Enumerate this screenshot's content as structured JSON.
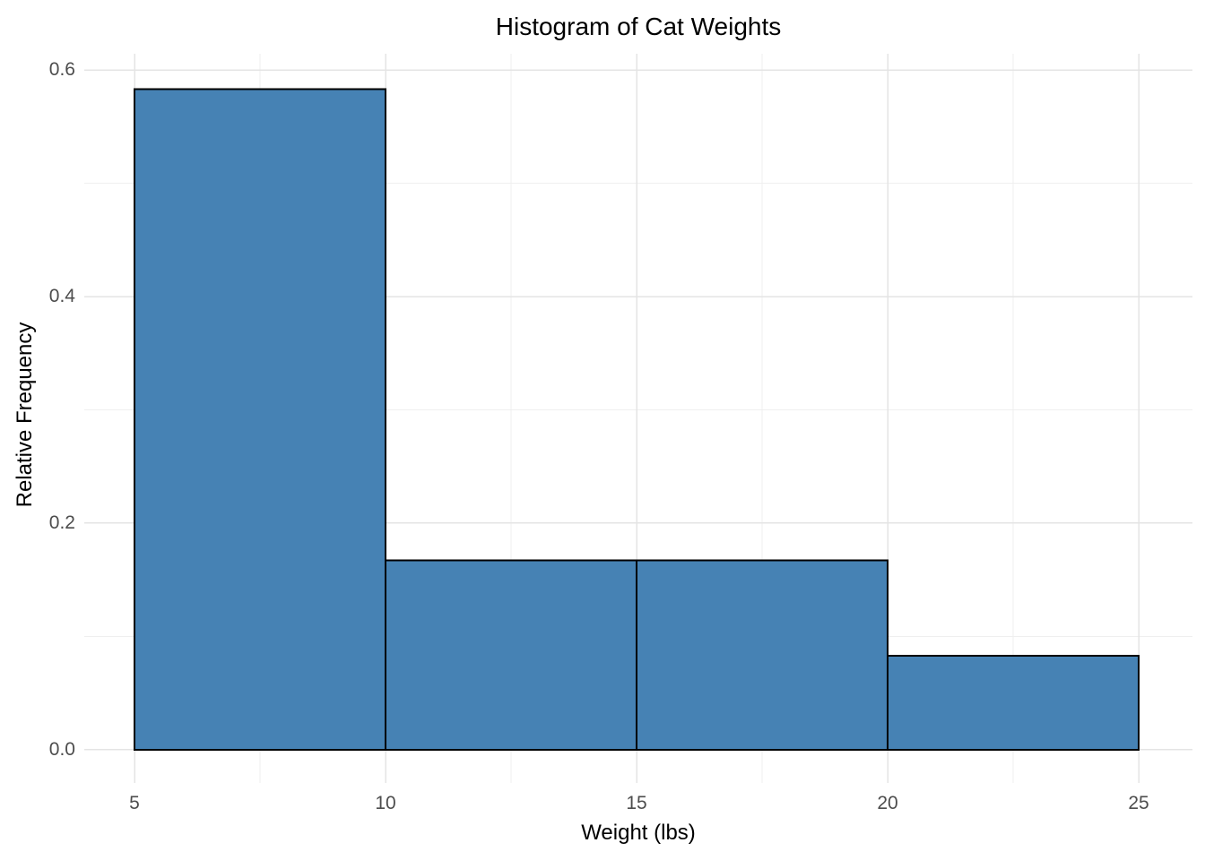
{
  "chart_data": {
    "type": "bar",
    "subtype": "histogram",
    "title": "Histogram of Cat Weights",
    "xlabel": "Weight (lbs)",
    "ylabel": "Relative Frequency",
    "bin_edges": [
      5,
      10,
      15,
      20,
      25
    ],
    "values": [
      0.583,
      0.167,
      0.167,
      0.083
    ],
    "x_ticks": [
      5,
      10,
      15,
      20,
      25
    ],
    "x_tick_labels": [
      "5",
      "10",
      "15",
      "20",
      "25"
    ],
    "y_ticks": [
      0.0,
      0.2,
      0.4,
      0.6
    ],
    "y_tick_labels": [
      "0.0",
      "0.2",
      "0.4",
      "0.6"
    ],
    "x_minor_gridlines": [
      7.5,
      12.5,
      17.5,
      22.5
    ],
    "y_minor_gridlines": [
      0.1,
      0.3,
      0.5
    ],
    "xlim": [
      4.0,
      26.07
    ],
    "ylim": [
      -0.0293,
      0.6143
    ],
    "grid": true,
    "legend": "none",
    "colors": {
      "bar_fill": "#4682B4",
      "bar_stroke": "#000000",
      "grid_major": "#E4E4E4",
      "grid_minor": "#EFEFEF",
      "tick_text": "#4D4D4D",
      "title_text": "#000000",
      "background": "#FFFFFF"
    }
  }
}
